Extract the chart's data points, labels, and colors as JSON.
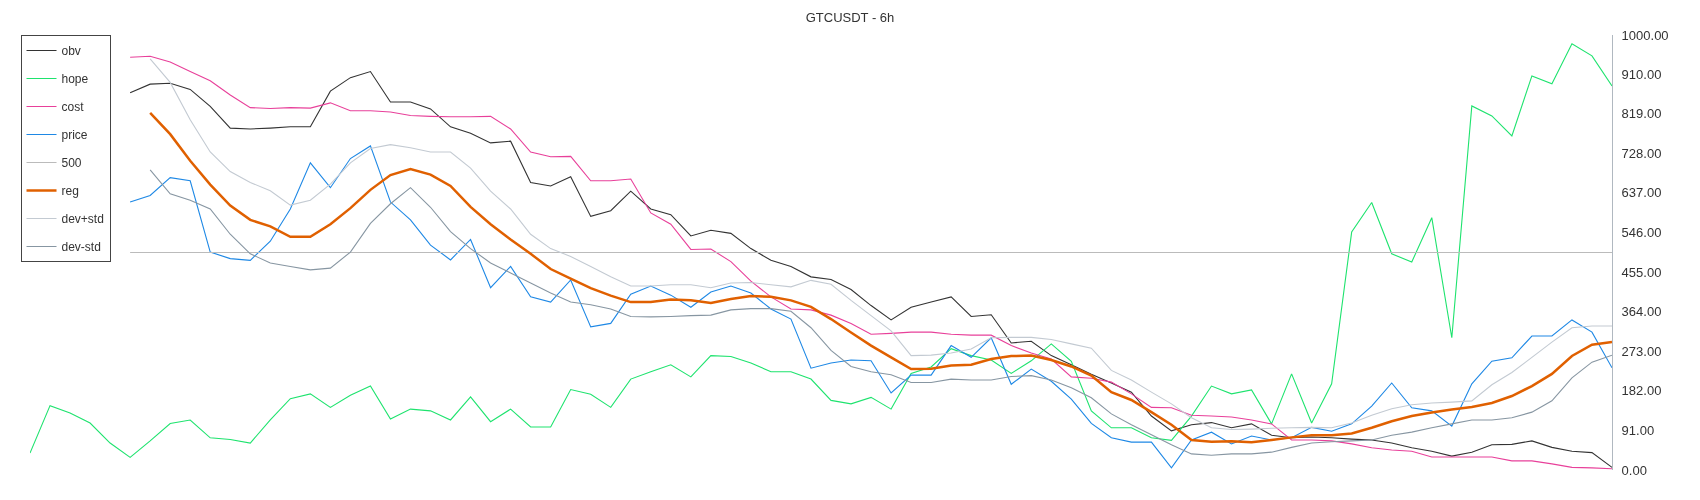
{
  "chart_data": {
    "type": "line",
    "title": "GTCUSDT - 6h",
    "categories": [
      null,
      null,
      null,
      null,
      null,
      null,
      null,
      null,
      null,
      null,
      null,
      null,
      null,
      null,
      null,
      null,
      null,
      null,
      null,
      null,
      null,
      null,
      null,
      null,
      null,
      null,
      null,
      null,
      null,
      null,
      null,
      null,
      null,
      null,
      null,
      null,
      null,
      null,
      null,
      null,
      null,
      null,
      null,
      null,
      null,
      null,
      null,
      null,
      null,
      null,
      null,
      null,
      null,
      null,
      null,
      null,
      null,
      null,
      null,
      null,
      null,
      null,
      null,
      null,
      null,
      null,
      null,
      null,
      null,
      null,
      null,
      null,
      null,
      null,
      null,
      null,
      null,
      null,
      null,
      null
    ],
    "ylim": [
      0,
      1000
    ],
    "yticks": [
      {
        "value": 0,
        "label": "0.00"
      },
      {
        "value": 91,
        "label": "91.00"
      },
      {
        "value": 182,
        "label": "182.00"
      },
      {
        "value": 273,
        "label": "273.00"
      },
      {
        "value": 364,
        "label": "364.00"
      },
      {
        "value": 455,
        "label": "455.00"
      },
      {
        "value": 546,
        "label": "546.00"
      },
      {
        "value": 637,
        "label": "637.00"
      },
      {
        "value": 728,
        "label": "728.00"
      },
      {
        "value": 819,
        "label": "819.00"
      },
      {
        "value": 910,
        "label": "910.00"
      },
      {
        "value": 1000,
        "label": "1000.00"
      }
    ],
    "tick_labels": "y",
    "legend": "top left",
    "marker": "none",
    "line_style": "solid",
    "series": [
      {
        "name": "obv",
        "color": "#333333",
        "values": [
          null,
          null,
          null,
          null,
          null,
          867,
          887,
          889,
          875,
          836,
          786,
          784,
          786,
          789,
          789,
          871,
          902,
          916,
          846,
          846,
          830,
          789,
          774,
          752,
          756,
          661,
          653,
          674,
          583,
          596,
          641,
          600,
          587,
          538,
          551,
          544,
          509,
          482,
          468,
          444,
          438,
          415,
          378,
          345,
          374,
          386,
          398,
          353,
          357,
          292,
          296,
          263,
          242,
          220,
          200,
          179,
          124,
          90,
          104,
          109,
          97,
          106,
          80,
          74,
          76,
          74,
          71,
          69,
          62,
          51,
          43,
          32,
          41,
          58,
          59,
          67,
          52,
          43,
          40,
          6
        ]
      },
      {
        "name": "hope",
        "color": "#1ee36e",
        "values": [
          39,
          148,
          131,
          108,
          62,
          29,
          67,
          107,
          115,
          74,
          70,
          62,
          115,
          164,
          175,
          144,
          172,
          193,
          117,
          140,
          136,
          115,
          168,
          111,
          140,
          99,
          99,
          185,
          174,
          144,
          209,
          226,
          242,
          214,
          263,
          261,
          246,
          226,
          226,
          209,
          160,
          152,
          167,
          140,
          222,
          237,
          279,
          263,
          253,
          222,
          251,
          290,
          250,
          136,
          97,
          97,
          74,
          68,
          124,
          193,
          175,
          184,
          106,
          221,
          108,
          198,
          547,
          615,
          497,
          478,
          580,
          304,
          837,
          814,
          768,
          906,
          888,
          980,
          952,
          883
        ]
      },
      {
        "name": "cost",
        "color": "#e8409a",
        "values": [
          null,
          null,
          null,
          null,
          null,
          949,
          951,
          938,
          916,
          895,
          862,
          833,
          831,
          833,
          832,
          844,
          826,
          826,
          823,
          815,
          813,
          812,
          812,
          813,
          784,
          731,
          720,
          721,
          665,
          665,
          669,
          591,
          565,
          507,
          508,
          479,
          434,
          398,
          370,
          368,
          356,
          337,
          312,
          314,
          317,
          317,
          312,
          310,
          310,
          286,
          269,
          255,
          214,
          211,
          202,
          175,
          144,
          143,
          126,
          124,
          122,
          115,
          106,
          69,
          69,
          67,
          60,
          51,
          46,
          43,
          30,
          30,
          30,
          30,
          21,
          21,
          14,
          6,
          5,
          3
        ]
      },
      {
        "name": "price",
        "color": "#1e88e5",
        "values": [
          null,
          null,
          null,
          null,
          null,
          616,
          631,
          672,
          665,
          501,
          486,
          482,
          526,
          600,
          706,
          649,
          716,
          745,
          616,
          575,
          517,
          483,
          530,
          419,
          468,
          398,
          386,
          437,
          329,
          337,
          404,
          423,
          402,
          374,
          409,
          423,
          407,
          370,
          347,
          234,
          246,
          253,
          251,
          177,
          218,
          218,
          286,
          259,
          304,
          197,
          232,
          204,
          163,
          107,
          74,
          64,
          64,
          5,
          69,
          87,
          60,
          78,
          69,
          74,
          98,
          89,
          106,
          147,
          200,
          143,
          136,
          101,
          198,
          250,
          258,
          308,
          308,
          345,
          317,
          235
        ]
      },
      {
        "name": "500",
        "color": "#bbbbbb",
        "values": [
          null,
          null,
          null,
          null,
          null,
          500,
          500,
          500,
          500,
          500,
          500,
          500,
          500,
          500,
          500,
          500,
          500,
          500,
          500,
          500,
          500,
          500,
          500,
          500,
          500,
          500,
          500,
          500,
          500,
          500,
          500,
          500,
          500,
          500,
          500,
          500,
          500,
          500,
          500,
          500,
          500,
          500,
          500,
          500,
          500,
          500,
          500,
          500,
          500,
          500,
          500,
          500,
          500,
          500,
          500,
          500,
          500,
          500,
          500,
          500,
          500,
          500,
          500,
          500,
          500,
          500,
          500,
          500,
          500,
          500,
          500,
          500,
          500,
          500,
          500,
          500,
          500,
          500,
          500,
          500
        ]
      },
      {
        "name": "reg",
        "color": "#e06000",
        "values": [
          null,
          null,
          null,
          null,
          null,
          null,
          821,
          772,
          711,
          656,
          608,
          575,
          560,
          536,
          536,
          565,
          602,
          644,
          678,
          692,
          679,
          653,
          605,
          565,
          530,
          497,
          462,
          440,
          418,
          401,
          386,
          386,
          392,
          390,
          384,
          393,
          400,
          398,
          390,
          375,
          347,
          316,
          286,
          259,
          232,
          233,
          240,
          242,
          255,
          262,
          263,
          253,
          238,
          217,
          179,
          161,
          133,
          104,
          69,
          65,
          66,
          64,
          69,
          75,
          80,
          80,
          84,
          97,
          112,
          124,
          132,
          139,
          145,
          154,
          170,
          193,
          221,
          262,
          288,
          294
        ]
      },
      {
        "name": "dev+std",
        "color": "#c3cad2",
        "values": [
          null,
          null,
          null,
          null,
          null,
          null,
          945,
          891,
          805,
          731,
          686,
          661,
          642,
          609,
          620,
          657,
          706,
          739,
          748,
          741,
          731,
          731,
          694,
          641,
          600,
          542,
          509,
          491,
          468,
          444,
          423,
          423,
          426,
          426,
          419,
          430,
          431,
          426,
          421,
          436,
          427,
          390,
          355,
          320,
          263,
          264,
          269,
          278,
          304,
          305,
          305,
          300,
          290,
          280,
          229,
          207,
          179,
          152,
          120,
          97,
          93,
          94,
          96,
          97,
          98,
          97,
          108,
          126,
          141,
          150,
          154,
          156,
          159,
          196,
          224,
          259,
          294,
          327,
          331,
          331
        ]
      },
      {
        "name": "dev-std",
        "color": "#8796a2",
        "values": [
          null,
          null,
          null,
          null,
          null,
          null,
          690,
          635,
          620,
          600,
          542,
          497,
          476,
          468,
          460,
          464,
          501,
          567,
          612,
          649,
          604,
          548,
          509,
          476,
          453,
          430,
          407,
          386,
          380,
          370,
          353,
          352,
          353,
          355,
          356,
          368,
          371,
          371,
          365,
          327,
          275,
          238,
          226,
          219,
          201,
          201,
          209,
          207,
          207,
          215,
          217,
          207,
          189,
          166,
          129,
          104,
          81,
          58,
          37,
          34,
          37,
          37,
          41,
          52,
          62,
          65,
          67,
          69,
          80,
          87,
          97,
          106,
          115,
          115,
          120,
          133,
          159,
          212,
          248,
          264
        ]
      }
    ]
  }
}
